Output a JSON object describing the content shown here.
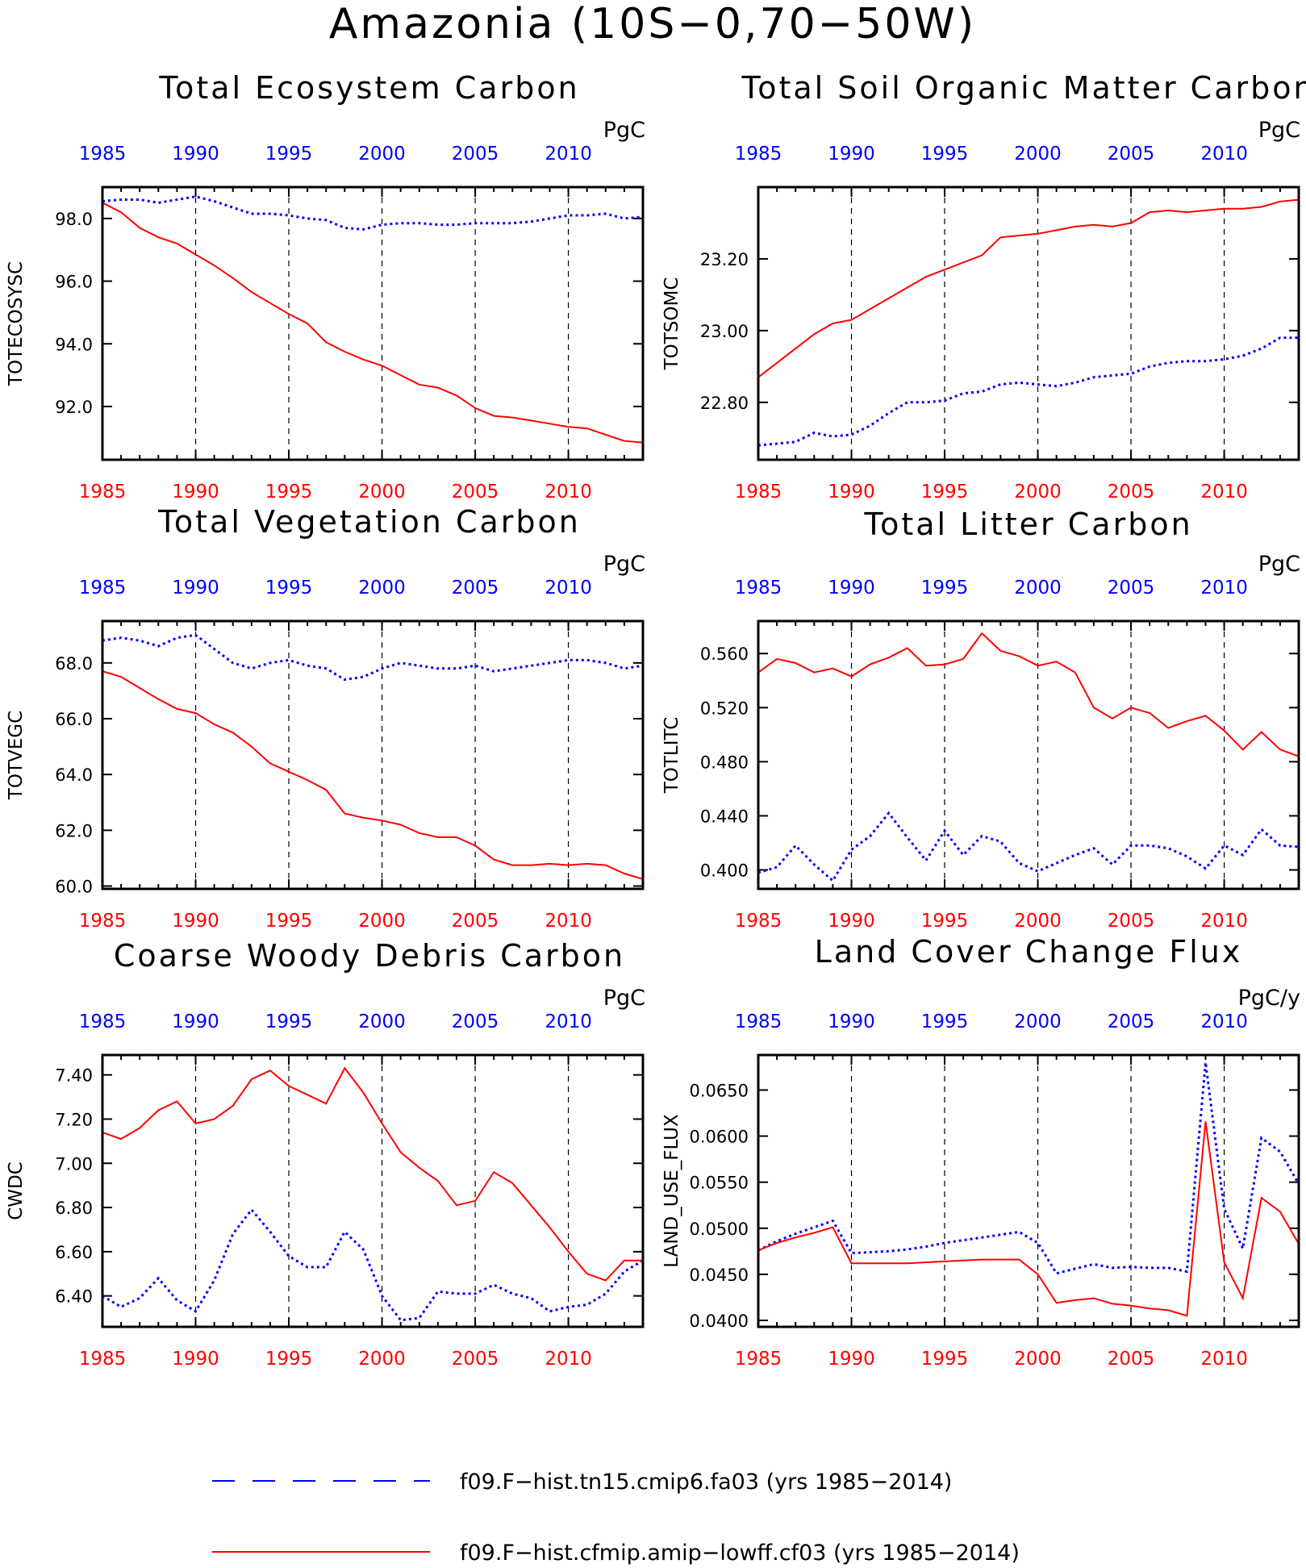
{
  "figure_title": "Amazonia (10S−0,70−50W)",
  "legend": [
    {
      "label": "f09.F−hist.tn15.cmip6.fa03 (yrs 1985−2014)",
      "color": "#0000ff",
      "style": "dashed"
    },
    {
      "label": "f09.F−hist.cfmip.amip−lowff.cf03 (yrs 1985−2014)",
      "color": "#ff0000",
      "style": "solid"
    }
  ],
  "colors": {
    "series_1": "#0000ff",
    "series_2": "#ff0000",
    "top_axis": "#0000ff",
    "bottom_axis": "#ff0000"
  },
  "chart_data": [
    {
      "type": "line",
      "title": "Total Ecosystem Carbon",
      "ylabel": "TOTECOSYSC",
      "units": "PgC",
      "xlim": [
        1985,
        2014
      ],
      "ylim": [
        90.3,
        99.0
      ],
      "xticks": [
        "1985",
        "1990",
        "1995",
        "2000",
        "2005",
        "2010"
      ],
      "yticks": [
        "92.0",
        "94.0",
        "96.0",
        "98.0"
      ],
      "grid": "vertical dashed at x ticks",
      "x": [
        1985,
        1986,
        1987,
        1988,
        1989,
        1990,
        1991,
        1992,
        1993,
        1994,
        1995,
        1996,
        1997,
        1998,
        1999,
        2000,
        2001,
        2002,
        2003,
        2004,
        2005,
        2006,
        2007,
        2008,
        2009,
        2010,
        2011,
        2012,
        2013,
        2014
      ],
      "series": [
        {
          "values": [
            98.55,
            98.6,
            98.6,
            98.5,
            98.6,
            98.7,
            98.55,
            98.35,
            98.15,
            98.15,
            98.1,
            98.0,
            97.95,
            97.7,
            97.65,
            97.8,
            97.85,
            97.85,
            97.8,
            97.8,
            97.85,
            97.85,
            97.85,
            97.9,
            98.0,
            98.1,
            98.1,
            98.15,
            98.0,
            98.05
          ]
        },
        {
          "values": [
            98.5,
            98.2,
            97.7,
            97.4,
            97.2,
            96.85,
            96.5,
            96.1,
            95.65,
            95.3,
            94.95,
            94.65,
            94.05,
            93.75,
            93.5,
            93.3,
            93.0,
            92.7,
            92.6,
            92.35,
            91.95,
            91.7,
            91.65,
            91.55,
            91.45,
            91.35,
            91.3,
            91.1,
            90.9,
            90.85
          ]
        }
      ]
    },
    {
      "type": "line",
      "title": "Total Soil Organic Matter Carbon",
      "ylabel": "TOTSOMC",
      "units": "PgC",
      "xlim": [
        1985,
        2014
      ],
      "ylim": [
        22.64,
        23.4
      ],
      "xticks": [
        "1985",
        "1990",
        "1995",
        "2000",
        "2005",
        "2010"
      ],
      "yticks": [
        "22.80",
        "23.00",
        "23.20"
      ],
      "grid": "vertical dashed at x ticks",
      "x": [
        1985,
        1986,
        1987,
        1988,
        1989,
        1990,
        1991,
        1992,
        1993,
        1994,
        1995,
        1996,
        1997,
        1998,
        1999,
        2000,
        2001,
        2002,
        2003,
        2004,
        2005,
        2006,
        2007,
        2008,
        2009,
        2010,
        2011,
        2012,
        2013,
        2014
      ],
      "series": [
        {
          "values": [
            22.68,
            22.685,
            22.69,
            22.715,
            22.705,
            22.71,
            22.735,
            22.77,
            22.8,
            22.8,
            22.805,
            22.825,
            22.83,
            22.85,
            22.855,
            22.85,
            22.845,
            22.855,
            22.87,
            22.875,
            22.88,
            22.9,
            22.91,
            22.915,
            22.915,
            22.92,
            22.93,
            22.95,
            22.98,
            22.98
          ]
        },
        {
          "values": [
            22.87,
            22.91,
            22.95,
            22.99,
            23.02,
            23.03,
            23.06,
            23.09,
            23.12,
            23.15,
            23.17,
            23.19,
            23.21,
            23.26,
            23.265,
            23.27,
            23.28,
            23.29,
            23.295,
            23.29,
            23.3,
            23.33,
            23.335,
            23.33,
            23.335,
            23.34,
            23.34,
            23.345,
            23.36,
            23.365
          ]
        }
      ]
    },
    {
      "type": "line",
      "title": "Total Vegetation Carbon",
      "ylabel": "TOTVEGC",
      "units": "PgC",
      "xlim": [
        1985,
        2014
      ],
      "ylim": [
        59.9,
        69.5
      ],
      "xticks": [
        "1985",
        "1990",
        "1995",
        "2000",
        "2005",
        "2010"
      ],
      "yticks": [
        "60.0",
        "62.0",
        "64.0",
        "66.0",
        "68.0"
      ],
      "grid": "vertical dashed at x ticks",
      "x": [
        1985,
        1986,
        1987,
        1988,
        1989,
        1990,
        1991,
        1992,
        1993,
        1994,
        1995,
        1996,
        1997,
        1998,
        1999,
        2000,
        2001,
        2002,
        2003,
        2004,
        2005,
        2006,
        2007,
        2008,
        2009,
        2010,
        2011,
        2012,
        2013,
        2014
      ],
      "series": [
        {
          "values": [
            68.8,
            68.9,
            68.8,
            68.6,
            68.9,
            69.0,
            68.5,
            68.0,
            67.8,
            68.0,
            68.1,
            67.9,
            67.8,
            67.4,
            67.5,
            67.8,
            68.0,
            67.9,
            67.8,
            67.8,
            67.9,
            67.7,
            67.8,
            67.9,
            68.0,
            68.1,
            68.1,
            68.0,
            67.8,
            67.9
          ]
        },
        {
          "values": [
            67.7,
            67.5,
            67.1,
            66.7,
            66.35,
            66.2,
            65.8,
            65.5,
            65.0,
            64.4,
            64.1,
            63.8,
            63.45,
            62.6,
            62.45,
            62.35,
            62.2,
            61.9,
            61.75,
            61.75,
            61.45,
            60.95,
            60.75,
            60.75,
            60.8,
            60.75,
            60.8,
            60.75,
            60.45,
            60.25
          ]
        }
      ]
    },
    {
      "type": "line",
      "title": "Total Litter Carbon",
      "ylabel": "TOTLITC",
      "units": "PgC",
      "xlim": [
        1985,
        2014
      ],
      "ylim": [
        0.386,
        0.584
      ],
      "xticks": [
        "1985",
        "1990",
        "1995",
        "2000",
        "2005",
        "2010"
      ],
      "yticks": [
        "0.400",
        "0.440",
        "0.480",
        "0.520",
        "0.560"
      ],
      "grid": "vertical dashed at x ticks",
      "x": [
        1985,
        1986,
        1987,
        1988,
        1989,
        1990,
        1991,
        1992,
        1993,
        1994,
        1995,
        1996,
        1997,
        1998,
        1999,
        2000,
        2001,
        2002,
        2003,
        2004,
        2005,
        2006,
        2007,
        2008,
        2009,
        2010,
        2011,
        2012,
        2013,
        2014
      ],
      "series": [
        {
          "values": [
            0.398,
            0.402,
            0.418,
            0.404,
            0.392,
            0.415,
            0.425,
            0.442,
            0.424,
            0.407,
            0.429,
            0.411,
            0.425,
            0.421,
            0.405,
            0.399,
            0.405,
            0.411,
            0.416,
            0.404,
            0.418,
            0.418,
            0.416,
            0.41,
            0.401,
            0.418,
            0.411,
            0.43,
            0.418,
            0.417
          ]
        },
        {
          "values": [
            0.546,
            0.556,
            0.553,
            0.546,
            0.549,
            0.543,
            0.552,
            0.557,
            0.564,
            0.551,
            0.552,
            0.556,
            0.575,
            0.562,
            0.558,
            0.551,
            0.554,
            0.546,
            0.52,
            0.512,
            0.52,
            0.516,
            0.505,
            0.51,
            0.514,
            0.503,
            0.489,
            0.502,
            0.489,
            0.484
          ]
        }
      ]
    },
    {
      "type": "line",
      "title": "Coarse Woody Debris Carbon",
      "ylabel": "CWDC",
      "units": "PgC",
      "xlim": [
        1985,
        2014
      ],
      "ylim": [
        6.26,
        7.49
      ],
      "xticks": [
        "1985",
        "1990",
        "1995",
        "2000",
        "2005",
        "2010"
      ],
      "yticks": [
        "6.40",
        "6.60",
        "6.80",
        "7.00",
        "7.20",
        "7.40"
      ],
      "grid": "vertical dashed at x ticks",
      "x": [
        1985,
        1986,
        1987,
        1988,
        1989,
        1990,
        1991,
        1992,
        1993,
        1994,
        1995,
        1996,
        1997,
        1998,
        1999,
        2000,
        2001,
        2002,
        2003,
        2004,
        2005,
        2006,
        2007,
        2008,
        2009,
        2010,
        2011,
        2012,
        2013,
        2014
      ],
      "series": [
        {
          "values": [
            6.4,
            6.35,
            6.39,
            6.48,
            6.38,
            6.33,
            6.47,
            6.68,
            6.79,
            6.69,
            6.58,
            6.53,
            6.53,
            6.69,
            6.61,
            6.4,
            6.29,
            6.3,
            6.42,
            6.41,
            6.41,
            6.45,
            6.41,
            6.39,
            6.33,
            6.35,
            6.36,
            6.41,
            6.51,
            6.56
          ]
        },
        {
          "values": [
            7.14,
            7.11,
            7.16,
            7.24,
            7.28,
            7.18,
            7.2,
            7.26,
            7.38,
            7.42,
            7.35,
            7.31,
            7.27,
            7.43,
            7.32,
            7.18,
            7.05,
            6.98,
            6.92,
            6.81,
            6.83,
            6.96,
            6.91,
            6.81,
            6.71,
            6.6,
            6.5,
            6.47,
            6.56,
            6.56
          ]
        }
      ]
    },
    {
      "type": "line",
      "title": "Land Cover Change Flux",
      "ylabel": "LAND_USE_FLUX",
      "units": "PgC/y",
      "xlim": [
        1985,
        2014
      ],
      "ylim": [
        0.0393,
        0.0688
      ],
      "xticks": [
        "1985",
        "1990",
        "1995",
        "2000",
        "2005",
        "2010"
      ],
      "yticks": [
        "0.0400",
        "0.0450",
        "0.0500",
        "0.0550",
        "0.0600",
        "0.0650"
      ],
      "grid": "vertical dashed at x ticks",
      "x": [
        1985,
        1986,
        1987,
        1988,
        1989,
        1990,
        1991,
        1992,
        1993,
        1994,
        1995,
        1996,
        1997,
        1998,
        1999,
        2000,
        2001,
        2002,
        2003,
        2004,
        2005,
        2006,
        2007,
        2008,
        2009,
        2010,
        2011,
        2012,
        2013,
        2014
      ],
      "series": [
        {
          "values": [
            0.0476,
            0.0486,
            0.0494,
            0.0501,
            0.0508,
            0.0473,
            0.0474,
            0.0475,
            0.0477,
            0.048,
            0.0484,
            0.0487,
            0.049,
            0.0493,
            0.0496,
            0.0484,
            0.0451,
            0.0456,
            0.0461,
            0.0457,
            0.0458,
            0.0457,
            0.0457,
            0.0453,
            0.068,
            0.0521,
            0.0478,
            0.0598,
            0.0583,
            0.0548
          ]
        },
        {
          "values": [
            0.0476,
            0.0484,
            0.049,
            0.0495,
            0.0501,
            0.0462,
            0.0462,
            0.0462,
            0.0462,
            0.0463,
            0.0464,
            0.0465,
            0.0466,
            0.0466,
            0.0466,
            0.045,
            0.0419,
            0.0422,
            0.0424,
            0.0418,
            0.0416,
            0.0413,
            0.0411,
            0.0405,
            0.0616,
            0.0463,
            0.0424,
            0.0533,
            0.0518,
            0.0483
          ]
        }
      ]
    }
  ]
}
